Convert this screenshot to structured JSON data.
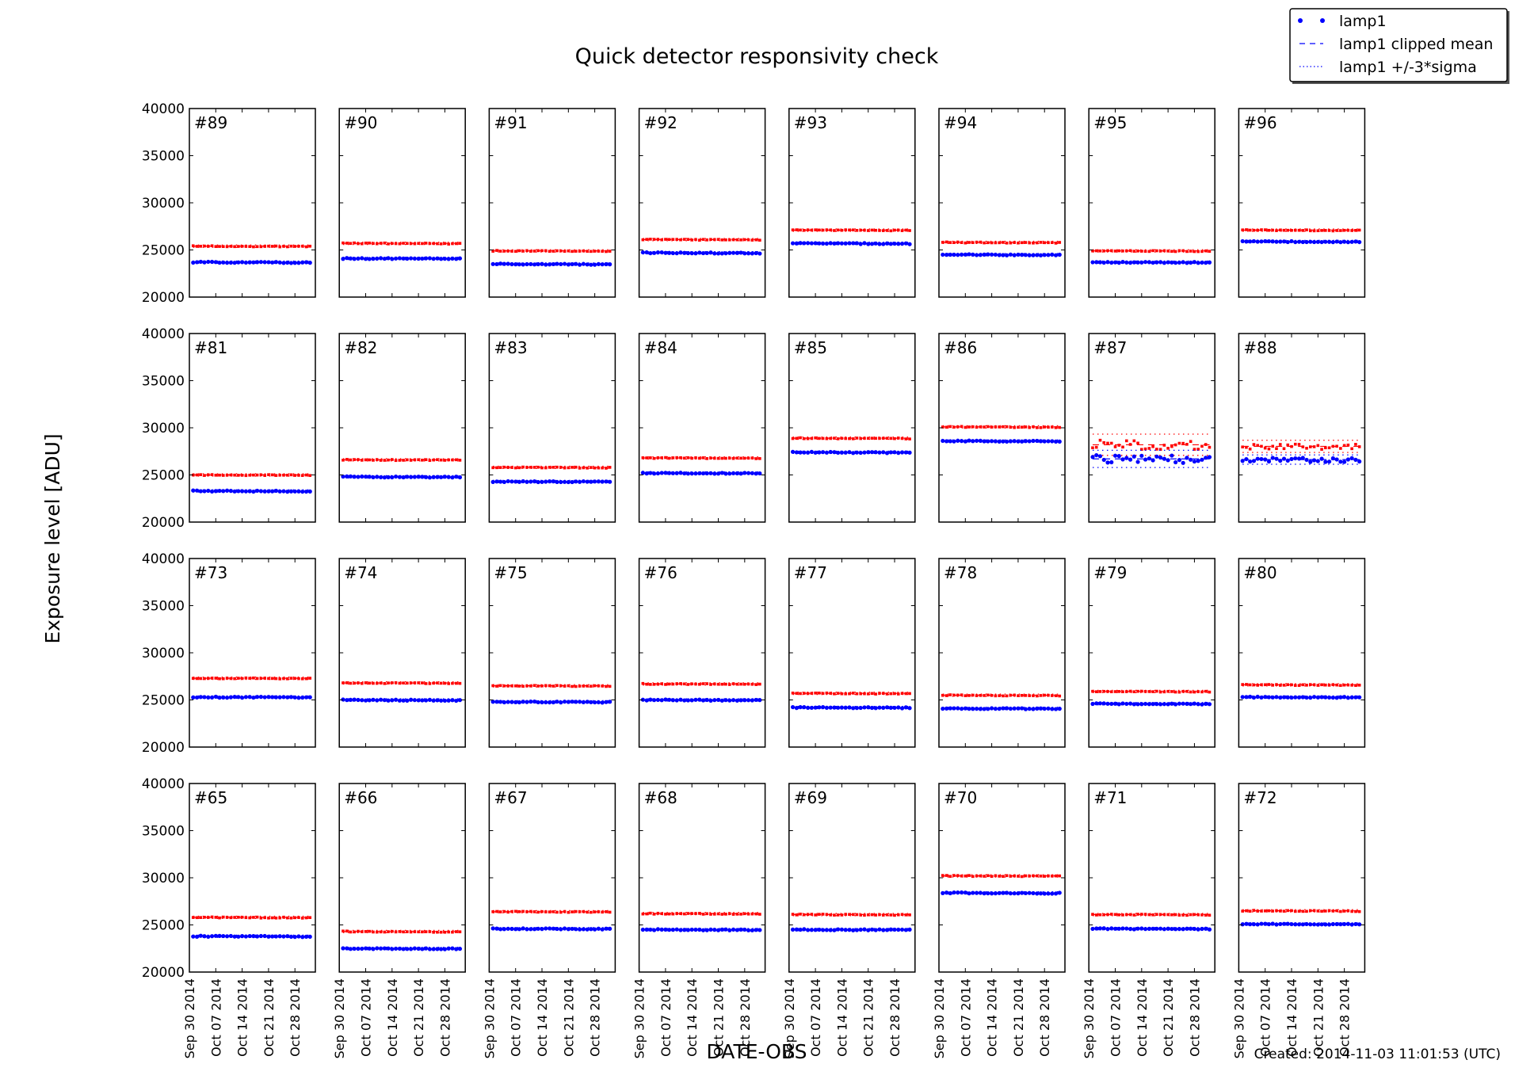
{
  "chart_data": {
    "type": "scatter",
    "title": "Quick detector responsivity check",
    "xlabel": "DATE-OBS",
    "ylabel": "Exposure level [ADU]",
    "footer": "Created: 2014-11-03 11:01:53 (UTC)",
    "ylim": [
      20000,
      40000
    ],
    "yticks": [
      "20000",
      "25000",
      "30000",
      "35000",
      "40000"
    ],
    "xlim": [
      "2014-09-30",
      "2014-11-02T10:00"
    ],
    "xticks": [
      {
        "date": "2014-09-30",
        "label": "Sep 30 2014"
      },
      {
        "date": "2014-10-07",
        "label": "Oct 07 2014"
      },
      {
        "date": "2014-10-14",
        "label": "Oct 14 2014"
      },
      {
        "date": "2014-10-21",
        "label": "Oct 21 2014"
      },
      {
        "date": "2014-10-28",
        "label": "Oct 28 2014"
      }
    ],
    "grid": false,
    "legend": {
      "placement": "top-right",
      "entries": [
        {
          "label": "lamp1",
          "style": "points"
        },
        {
          "label": "lamp1 clipped mean",
          "style": "dashed"
        },
        {
          "label": "lamp1 +/-3*sigma",
          "style": "dotted"
        }
      ]
    },
    "colors": {
      "lamp1": "#0000ff",
      "second_series": "#ff0000"
    },
    "observation_dates": {
      "first": "2014-10-01",
      "last": "2014-11-01",
      "step_days": 1
    },
    "panels": [
      {
        "label": "#89",
        "blue_mean": 23700,
        "blue_sigma": 40,
        "red_mean": 25400,
        "red_sigma": 40
      },
      {
        "label": "#90",
        "blue_mean": 24100,
        "blue_sigma": 40,
        "red_mean": 25700,
        "red_sigma": 40
      },
      {
        "label": "#91",
        "blue_mean": 23500,
        "blue_sigma": 40,
        "red_mean": 24900,
        "red_sigma": 40
      },
      {
        "label": "#92",
        "blue_mean": 24700,
        "blue_sigma": 40,
        "red_mean": 26100,
        "red_sigma": 40
      },
      {
        "label": "#93",
        "blue_mean": 25700,
        "blue_sigma": 40,
        "red_mean": 27100,
        "red_sigma": 40
      },
      {
        "label": "#94",
        "blue_mean": 24500,
        "blue_sigma": 40,
        "red_mean": 25800,
        "red_sigma": 40
      },
      {
        "label": "#95",
        "blue_mean": 23700,
        "blue_sigma": 40,
        "red_mean": 24900,
        "red_sigma": 40
      },
      {
        "label": "#96",
        "blue_mean": 25900,
        "blue_sigma": 40,
        "red_mean": 27100,
        "red_sigma": 40
      },
      {
        "label": "#81",
        "blue_mean": 23300,
        "blue_sigma": 40,
        "red_mean": 25000,
        "red_sigma": 40
      },
      {
        "label": "#82",
        "blue_mean": 24800,
        "blue_sigma": 40,
        "red_mean": 26600,
        "red_sigma": 40
      },
      {
        "label": "#83",
        "blue_mean": 24300,
        "blue_sigma": 40,
        "red_mean": 25800,
        "red_sigma": 40
      },
      {
        "label": "#84",
        "blue_mean": 25200,
        "blue_sigma": 40,
        "red_mean": 26800,
        "red_sigma": 40
      },
      {
        "label": "#85",
        "blue_mean": 27400,
        "blue_sigma": 40,
        "red_mean": 28900,
        "red_sigma": 40
      },
      {
        "label": "#86",
        "blue_mean": 28600,
        "blue_sigma": 40,
        "red_mean": 30100,
        "red_sigma": 40
      },
      {
        "label": "#87",
        "blue_mean": 26700,
        "blue_sigma": 305,
        "red_mean": 28200,
        "red_sigma": 375
      },
      {
        "label": "#88",
        "blue_mean": 26630,
        "blue_sigma": 165,
        "red_mean": 28030,
        "red_sigma": 215
      },
      {
        "label": "#73",
        "blue_mean": 25300,
        "blue_sigma": 40,
        "red_mean": 27300,
        "red_sigma": 40
      },
      {
        "label": "#74",
        "blue_mean": 25000,
        "blue_sigma": 40,
        "red_mean": 26800,
        "red_sigma": 40
      },
      {
        "label": "#75",
        "blue_mean": 24800,
        "blue_sigma": 40,
        "red_mean": 26500,
        "red_sigma": 40
      },
      {
        "label": "#76",
        "blue_mean": 25000,
        "blue_sigma": 40,
        "red_mean": 26700,
        "red_sigma": 40
      },
      {
        "label": "#77",
        "blue_mean": 24200,
        "blue_sigma": 40,
        "red_mean": 25700,
        "red_sigma": 40
      },
      {
        "label": "#78",
        "blue_mean": 24100,
        "blue_sigma": 40,
        "red_mean": 25500,
        "red_sigma": 40
      },
      {
        "label": "#79",
        "blue_mean": 24600,
        "blue_sigma": 40,
        "red_mean": 25900,
        "red_sigma": 40
      },
      {
        "label": "#80",
        "blue_mean": 25300,
        "blue_sigma": 40,
        "red_mean": 26600,
        "red_sigma": 40
      },
      {
        "label": "#65",
        "blue_mean": 23800,
        "blue_sigma": 40,
        "red_mean": 25800,
        "red_sigma": 40
      },
      {
        "label": "#66",
        "blue_mean": 22500,
        "blue_sigma": 40,
        "red_mean": 24300,
        "red_sigma": 40
      },
      {
        "label": "#67",
        "blue_mean": 24600,
        "blue_sigma": 40,
        "red_mean": 26400,
        "red_sigma": 40
      },
      {
        "label": "#68",
        "blue_mean": 24500,
        "blue_sigma": 40,
        "red_mean": 26200,
        "red_sigma": 40
      },
      {
        "label": "#69",
        "blue_mean": 24500,
        "blue_sigma": 40,
        "red_mean": 26100,
        "red_sigma": 40
      },
      {
        "label": "#70",
        "blue_mean": 28400,
        "blue_sigma": 40,
        "red_mean": 30200,
        "red_sigma": 40
      },
      {
        "label": "#71",
        "blue_mean": 24600,
        "blue_sigma": 40,
        "red_mean": 26100,
        "red_sigma": 40
      },
      {
        "label": "#72",
        "blue_mean": 25100,
        "blue_sigma": 40,
        "red_mean": 26500,
        "red_sigma": 40
      }
    ]
  }
}
